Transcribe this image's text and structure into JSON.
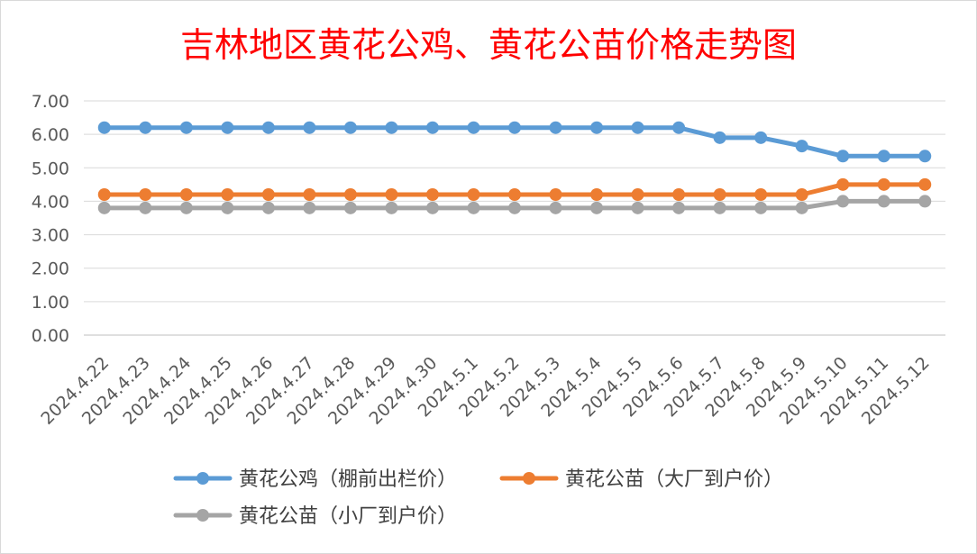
{
  "chart_data": {
    "type": "line",
    "title": "吉林地区黄花公鸡、黄花公苗价格走势图",
    "title_color": "#ff0000",
    "xlabel": "",
    "ylabel": "",
    "categories": [
      "2024.4.22",
      "2024.4.23",
      "2024.4.24",
      "2024.4.25",
      "2024.4.26",
      "2024.4.27",
      "2024.4.28",
      "2024.4.29",
      "2024.4.30",
      "2024.5.1",
      "2024.5.2",
      "2024.5.3",
      "2024.5.4",
      "2024.5.5",
      "2024.5.6",
      "2024.5.7",
      "2024.5.8",
      "2024.5.9",
      "2024.5.10",
      "2024.5.11",
      "2024.5.12"
    ],
    "ylim": [
      0,
      7
    ],
    "yticks": [
      "0.00",
      "1.00",
      "2.00",
      "3.00",
      "4.00",
      "5.00",
      "6.00",
      "7.00"
    ],
    "grid": true,
    "legend_position": "bottom",
    "series": [
      {
        "name": "黄花公鸡（棚前出栏价）",
        "color": "#5b9bd5",
        "values": [
          6.2,
          6.2,
          6.2,
          6.2,
          6.2,
          6.2,
          6.2,
          6.2,
          6.2,
          6.2,
          6.2,
          6.2,
          6.2,
          6.2,
          6.2,
          5.9,
          5.9,
          5.65,
          5.35,
          5.35,
          5.35
        ]
      },
      {
        "name": "黄花公苗（大厂到户价）",
        "color": "#ed7d31",
        "values": [
          4.2,
          4.2,
          4.2,
          4.2,
          4.2,
          4.2,
          4.2,
          4.2,
          4.2,
          4.2,
          4.2,
          4.2,
          4.2,
          4.2,
          4.2,
          4.2,
          4.2,
          4.2,
          4.5,
          4.5,
          4.5
        ]
      },
      {
        "name": "黄花公苗（小厂到户价）",
        "color": "#a5a5a5",
        "values": [
          3.8,
          3.8,
          3.8,
          3.8,
          3.8,
          3.8,
          3.8,
          3.8,
          3.8,
          3.8,
          3.8,
          3.8,
          3.8,
          3.8,
          3.8,
          3.8,
          3.8,
          3.8,
          4.0,
          4.0,
          4.0
        ]
      }
    ]
  }
}
